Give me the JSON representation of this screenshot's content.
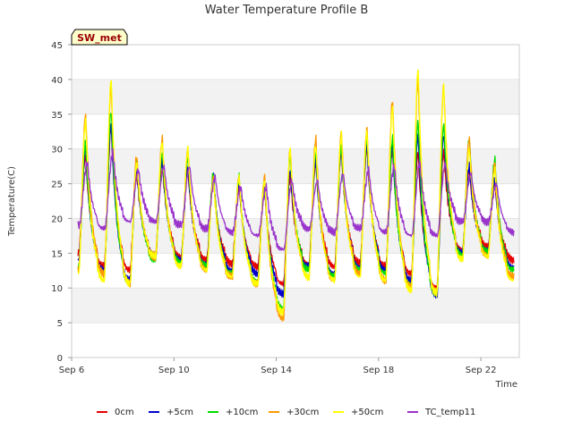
{
  "chart_data": {
    "type": "line",
    "title": "Water Temperature Profile B",
    "xlabel": "Time",
    "ylabel": "Temperature(C)",
    "badge": "SW_met",
    "ylim": [
      0,
      45
    ],
    "yticks": [
      0,
      5,
      10,
      15,
      20,
      25,
      30,
      35,
      40,
      45
    ],
    "xlim": [
      "2024-09-06",
      "2024-09-23 12:00"
    ],
    "xticks": [
      {
        "label": "Sep 6",
        "day": 6
      },
      {
        "label": "Sep 10",
        "day": 10
      },
      {
        "label": "Sep 14",
        "day": 14
      },
      {
        "label": "Sep 18",
        "day": 18
      },
      {
        "label": "Sep 22",
        "day": 22
      }
    ],
    "grid": true,
    "legend_position": "bottom",
    "days": [
      6,
      7,
      8,
      9,
      10,
      11,
      12,
      13,
      14,
      15,
      16,
      17,
      18,
      19,
      20,
      21,
      22,
      23
    ],
    "series": [
      {
        "name": "0cm",
        "color": "#e60000",
        "min": [
          15.0,
          13.0,
          12.5,
          15.0,
          14.5,
          14.0,
          13.5,
          13.0,
          10.5,
          13.5,
          13.0,
          13.5,
          13.0,
          12.0,
          10.0,
          15.5,
          16.0,
          14.0
        ],
        "max": [
          29.0,
          33.0,
          26.5,
          28.0,
          27.0,
          25.5,
          24.5,
          24.0,
          26.0,
          28.0,
          29.5,
          30.0,
          30.0,
          29.5,
          29.5,
          27.0,
          25.0,
          25.0
        ]
      },
      {
        "name": "+5cm",
        "color": "#0000cc",
        "min": [
          14.0,
          12.5,
          11.0,
          14.5,
          14.0,
          13.5,
          12.5,
          12.0,
          9.0,
          13.0,
          12.0,
          13.0,
          12.5,
          11.0,
          9.0,
          15.0,
          15.5,
          13.0
        ],
        "max": [
          30.0,
          33.5,
          27.0,
          28.5,
          27.5,
          26.0,
          25.0,
          24.5,
          27.0,
          28.5,
          30.0,
          30.5,
          30.5,
          32.0,
          32.0,
          27.5,
          25.5,
          25.5
        ]
      },
      {
        "name": "+10cm",
        "color": "#00dd00",
        "min": [
          13.0,
          12.0,
          10.5,
          14.0,
          13.5,
          13.0,
          12.0,
          11.0,
          7.0,
          12.5,
          11.5,
          12.5,
          12.0,
          10.5,
          9.0,
          14.5,
          15.0,
          12.5
        ],
        "max": [
          31.0,
          35.5,
          28.0,
          29.5,
          29.0,
          26.5,
          26.0,
          25.5,
          29.0,
          29.5,
          30.5,
          31.5,
          31.5,
          34.0,
          33.5,
          31.5,
          28.5,
          28.5
        ]
      },
      {
        "name": "+30cm",
        "color": "#ff9900",
        "min": [
          12.5,
          12.0,
          10.5,
          14.0,
          13.0,
          12.5,
          11.5,
          10.5,
          5.5,
          11.5,
          11.0,
          12.0,
          11.0,
          10.0,
          9.5,
          14.0,
          14.5,
          11.5
        ],
        "max": [
          35.0,
          39.0,
          29.0,
          31.5,
          30.0,
          26.0,
          26.0,
          26.0,
          30.0,
          31.5,
          32.5,
          33.0,
          37.0,
          40.0,
          39.0,
          31.5,
          28.0,
          28.0
        ]
      },
      {
        "name": "+50cm",
        "color": "#ffff00",
        "min": [
          12.0,
          11.0,
          10.5,
          14.5,
          13.0,
          12.5,
          11.5,
          10.5,
          6.5,
          11.5,
          11.0,
          11.5,
          11.0,
          9.5,
          9.0,
          14.0,
          14.5,
          11.0
        ],
        "max": [
          34.0,
          40.0,
          28.0,
          31.0,
          30.0,
          25.5,
          26.0,
          25.5,
          30.0,
          30.5,
          32.0,
          32.5,
          36.0,
          41.5,
          39.0,
          30.0,
          27.0,
          27.0
        ]
      },
      {
        "name": "TC_temp11",
        "color": "#9933cc",
        "min": [
          19.0,
          18.5,
          19.5,
          19.5,
          19.0,
          18.5,
          18.0,
          17.5,
          15.5,
          18.5,
          18.0,
          18.5,
          18.0,
          17.5,
          17.5,
          19.5,
          19.5,
          18.0
        ],
        "max": [
          28.0,
          29.5,
          27.0,
          27.5,
          27.5,
          26.0,
          24.5,
          24.5,
          25.5,
          25.5,
          26.5,
          27.0,
          27.5,
          28.0,
          28.0,
          26.5,
          25.0,
          25.0
        ]
      }
    ]
  }
}
